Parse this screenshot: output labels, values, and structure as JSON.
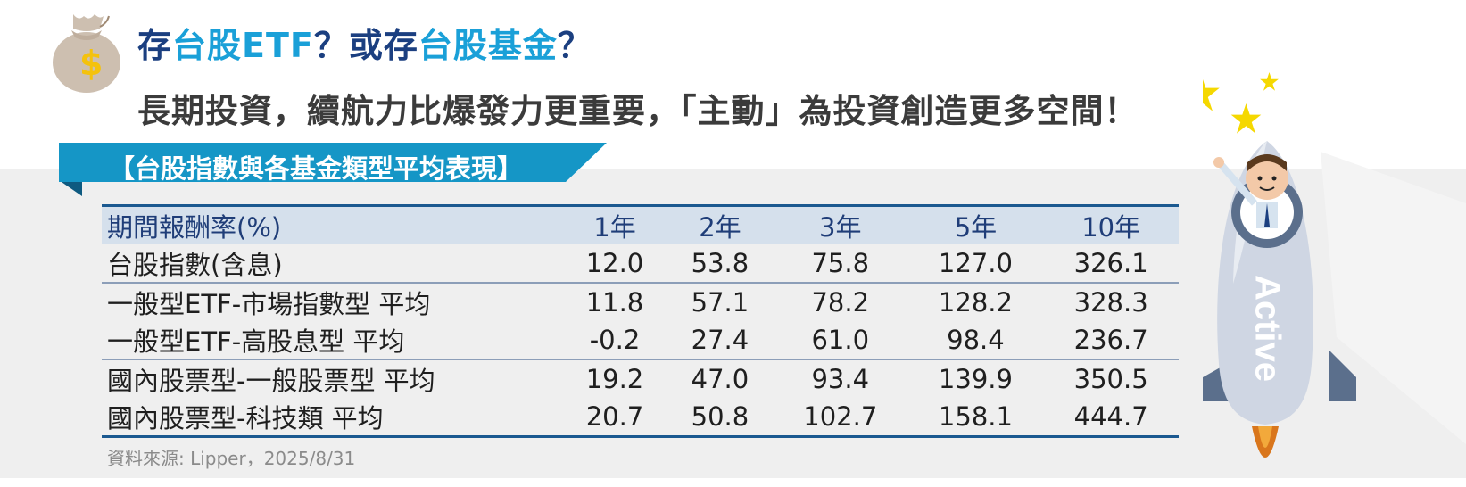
{
  "header": {
    "title_part1": "存",
    "title_hl1": "台股ETF",
    "title_part2": "？或存",
    "title_hl2": "台股基金",
    "title_part3": "？",
    "subtitle": "長期投資，續航力比爆發力更重要，「主動」為投資創造更多空間！"
  },
  "ribbon": {
    "label": "【台股指數與各基金類型平均表現】"
  },
  "table": {
    "columns": [
      "期間報酬率(%)",
      "1年",
      "2年",
      "3年",
      "5年",
      "10年"
    ],
    "rows": [
      {
        "name": "台股指數(含息)",
        "values": [
          "12.0",
          "53.8",
          "75.8",
          "127.0",
          "326.1"
        ]
      },
      {
        "name": "一般型ETF-市場指數型 平均",
        "values": [
          "11.8",
          "57.1",
          "78.2",
          "128.2",
          "328.3"
        ]
      },
      {
        "name": "一般型ETF-高股息型 平均",
        "values": [
          "-0.2",
          "27.4",
          "61.0",
          "98.4",
          "236.7"
        ]
      },
      {
        "name": "國內股票型-一般股票型 平均",
        "values": [
          "19.2",
          "47.0",
          "93.4",
          "139.9",
          "350.5"
        ]
      },
      {
        "name": "國內股票型-科技類 平均",
        "values": [
          "20.7",
          "50.8",
          "102.7",
          "158.1",
          "444.7"
        ]
      }
    ]
  },
  "source": "資料來源: Lipper，2025/8/31",
  "rocket": {
    "label": "Active"
  },
  "icons": {
    "money_bag": "money-bag-icon",
    "dollar": "$"
  },
  "colors": {
    "navy": "#1b3f80",
    "accent": "#1aa0d8",
    "ribbon": "#1596c6",
    "header_row": "#d5e0ec",
    "star": "#f5d800"
  }
}
